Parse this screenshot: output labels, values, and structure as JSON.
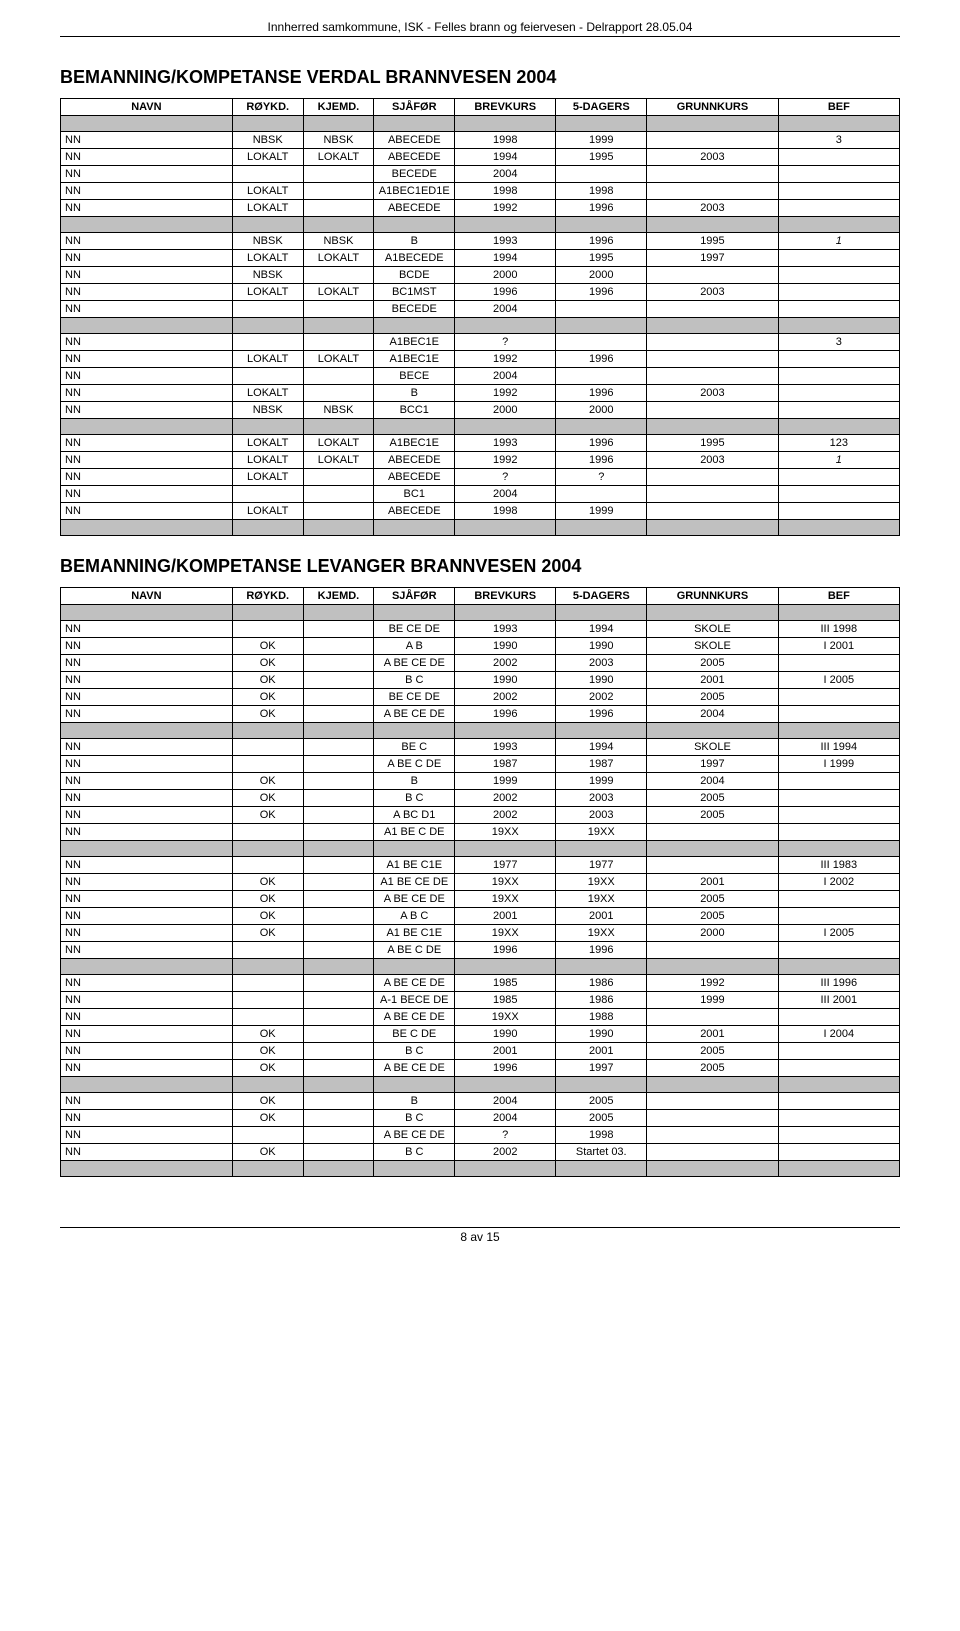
{
  "header": "Innherred samkommune, ISK - Felles brann og feiervesen - Delrapport 28.05.04",
  "footer": "8 av 15",
  "colors": {
    "grey": "#c0c0c0",
    "border": "#000000",
    "text": "#000000",
    "bg": "#ffffff"
  },
  "section1": {
    "title": "BEMANNING/KOMPETANSE VERDAL BRANNVESEN 2004",
    "columns": [
      "NAVN",
      "RØYKD.",
      "KJEMD.",
      "SJÅFØR",
      "BREVKURS",
      "5-DAGERS",
      "GRUNNKURS",
      "BEF"
    ],
    "groups": [
      [
        [
          "NN",
          "NBSK",
          "NBSK",
          "ABECEDE",
          "1998",
          "1999",
          "",
          "3"
        ],
        [
          "NN",
          "LOKALT",
          "LOKALT",
          "ABECEDE",
          "1994",
          "1995",
          "2003",
          ""
        ],
        [
          "NN",
          "",
          "",
          "BECEDE",
          "2004",
          "",
          "",
          ""
        ],
        [
          "NN",
          "LOKALT",
          "",
          "A1BEC1ED1E",
          "1998",
          "1998",
          "",
          ""
        ],
        [
          "NN",
          "LOKALT",
          "",
          "ABECEDE",
          "1992",
          "1996",
          "2003",
          ""
        ]
      ],
      [
        [
          "NN",
          "NBSK",
          "NBSK",
          "B",
          "1993",
          "1996",
          "1995",
          "1"
        ],
        [
          "NN",
          "LOKALT",
          "LOKALT",
          "A1BECEDE",
          "1994",
          "1995",
          "1997",
          ""
        ],
        [
          "NN",
          "NBSK",
          "",
          "BCDE",
          "2000",
          "2000",
          "",
          ""
        ],
        [
          "NN",
          "LOKALT",
          "LOKALT",
          "BC1MST",
          "1996",
          "1996",
          "2003",
          ""
        ],
        [
          "NN",
          "",
          "",
          "BECEDE",
          "2004",
          "",
          "",
          ""
        ]
      ],
      [
        [
          "NN",
          "",
          "",
          "A1BEC1E",
          "?",
          "",
          "",
          "3"
        ],
        [
          "NN",
          "LOKALT",
          "LOKALT",
          "A1BEC1E",
          "1992",
          "1996",
          "",
          ""
        ],
        [
          "NN",
          "",
          "",
          "BECE",
          "2004",
          "",
          "",
          ""
        ],
        [
          "NN",
          "LOKALT",
          "",
          "B",
          "1992",
          "1996",
          "2003",
          ""
        ],
        [
          "NN",
          "NBSK",
          "NBSK",
          "BCC1",
          "2000",
          "2000",
          "",
          ""
        ]
      ],
      [
        [
          "NN",
          "LOKALT",
          "LOKALT",
          "A1BEC1E",
          "1993",
          "1996",
          "1995",
          "123"
        ],
        [
          "NN",
          "LOKALT",
          "LOKALT",
          "ABECEDE",
          "1992",
          "1996",
          "2003",
          "1"
        ],
        [
          "NN",
          "LOKALT",
          "",
          "ABECEDE",
          "?",
          "?",
          "",
          ""
        ],
        [
          "NN",
          "",
          "",
          "BC1",
          "2004",
          "",
          "",
          ""
        ],
        [
          "NN",
          "LOKALT",
          "",
          "ABECEDE",
          "1998",
          "1999",
          "",
          ""
        ]
      ]
    ],
    "italic_bef_positions": [
      [
        1,
        0
      ],
      [
        3,
        1
      ]
    ]
  },
  "section2": {
    "title": "BEMANNING/KOMPETANSE LEVANGER BRANNVESEN 2004",
    "columns": [
      "NAVN",
      "RØYKD.",
      "KJEMD.",
      "SJÅFØR",
      "BREVKURS",
      "5-DAGERS",
      "GRUNNKURS",
      "BEF"
    ],
    "groups": [
      [
        [
          "NN",
          "",
          "",
          "BE CE DE",
          "1993",
          "1994",
          "SKOLE",
          "III   1998"
        ],
        [
          "NN",
          "OK",
          "",
          "A B",
          "1990",
          "1990",
          "SKOLE",
          "I    2001"
        ],
        [
          "NN",
          "OK",
          "",
          "A BE CE DE",
          "2002",
          "2003",
          "2005",
          ""
        ],
        [
          "NN",
          "OK",
          "",
          "B C",
          "1990",
          "1990",
          "2001",
          "I    2005"
        ],
        [
          "NN",
          "OK",
          "",
          "BE CE DE",
          "2002",
          "2002",
          "2005",
          ""
        ],
        [
          "NN",
          "OK",
          "",
          "A BE CE DE",
          "1996",
          "1996",
          "2004",
          ""
        ]
      ],
      [
        [
          "NN",
          "",
          "",
          "BE C",
          "1993",
          "1994",
          "SKOLE",
          "III   1994"
        ],
        [
          "NN",
          "",
          "",
          "A BE C DE",
          "1987",
          "1987",
          "1997",
          "I    1999"
        ],
        [
          "NN",
          "OK",
          "",
          "B",
          "1999",
          "1999",
          "2004",
          ""
        ],
        [
          "NN",
          "OK",
          "",
          "B C",
          "2002",
          "2003",
          "2005",
          ""
        ],
        [
          "NN",
          "OK",
          "",
          "A BC D1",
          "2002",
          "2003",
          "2005",
          ""
        ],
        [
          "NN",
          "",
          "",
          "A1 BE C DE",
          "19XX",
          "19XX",
          "",
          ""
        ]
      ],
      [
        [
          "NN",
          "",
          "",
          "A1 BE C1E",
          "1977",
          "1977",
          "",
          "III   1983"
        ],
        [
          "NN",
          "OK",
          "",
          "A1 BE CE DE",
          "19XX",
          "19XX",
          "2001",
          "I    2002"
        ],
        [
          "NN",
          "OK",
          "",
          "A BE CE DE",
          "19XX",
          "19XX",
          "2005",
          ""
        ],
        [
          "NN",
          "OK",
          "",
          "A B C",
          "2001",
          "2001",
          "2005",
          ""
        ],
        [
          "NN",
          "OK",
          "",
          "A1 BE C1E",
          "19XX",
          "19XX",
          "2000",
          "I    2005"
        ],
        [
          "NN",
          "",
          "",
          "A BE C DE",
          "1996",
          "1996",
          "",
          ""
        ]
      ],
      [
        [
          "NN",
          "",
          "",
          "A BE CE DE",
          "1985",
          "1986",
          "1992",
          "III   1996"
        ],
        [
          "NN",
          "",
          "",
          "A-1 BECE DE",
          "1985",
          "1986",
          "1999",
          "III   2001"
        ],
        [
          "NN",
          "",
          "",
          "A BE CE DE",
          "19XX",
          "1988",
          "",
          ""
        ],
        [
          "NN",
          "OK",
          "",
          "BE C DE",
          "1990",
          "1990",
          "2001",
          "I    2004"
        ],
        [
          "NN",
          "OK",
          "",
          "B C",
          "2001",
          "2001",
          "2005",
          ""
        ],
        [
          "NN",
          "OK",
          "",
          "A BE CE DE",
          "1996",
          "1997",
          "2005",
          ""
        ]
      ],
      [
        [
          "NN",
          "OK",
          "",
          "B",
          "2004",
          "2005",
          "",
          ""
        ],
        [
          "NN",
          "OK",
          "",
          "B C",
          "2004",
          "2005",
          "",
          ""
        ],
        [
          "NN",
          "",
          "",
          "A BE CE DE",
          "?",
          "1998",
          "",
          ""
        ],
        [
          "NN",
          "OK",
          "",
          "B C",
          "2002",
          "Startet 03.",
          "",
          ""
        ]
      ]
    ]
  }
}
